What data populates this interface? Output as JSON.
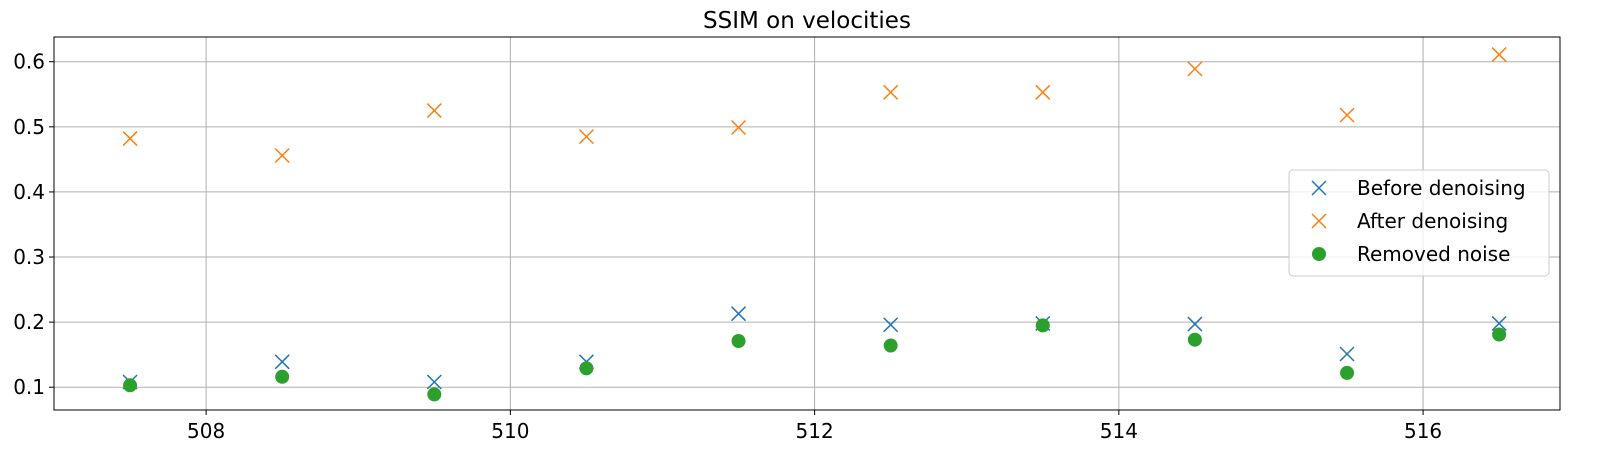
{
  "chart_data": {
    "type": "scatter",
    "title": "SSIM on velocities",
    "xlabel": "",
    "ylabel": "",
    "xlim": [
      507.0,
      516.9
    ],
    "ylim": [
      0.065,
      0.638
    ],
    "xticks": [
      508,
      510,
      512,
      514,
      516
    ],
    "yticks": [
      0.1,
      0.2,
      0.3,
      0.4,
      0.5,
      0.6
    ],
    "ytick_labels": [
      "0.1",
      "0.2",
      "0.3",
      "0.4",
      "0.5",
      "0.6"
    ],
    "grid": true,
    "legend_position": "center-right",
    "x": [
      507.5,
      508.5,
      509.5,
      510.5,
      511.5,
      512.5,
      513.5,
      514.5,
      515.5,
      516.5
    ],
    "series": [
      {
        "name": "Before denoising",
        "marker": "x",
        "color": "#1f77b4",
        "values": [
          0.108,
          0.139,
          0.108,
          0.139,
          0.213,
          0.196,
          0.198,
          0.197,
          0.151,
          0.198
        ]
      },
      {
        "name": "After denoising",
        "marker": "x",
        "color": "#ff7f0e",
        "values": [
          0.482,
          0.456,
          0.525,
          0.485,
          0.499,
          0.553,
          0.553,
          0.589,
          0.518,
          0.611
        ]
      },
      {
        "name": "Removed noise",
        "marker": "o",
        "color": "#2ca02c",
        "values": [
          0.103,
          0.116,
          0.089,
          0.129,
          0.171,
          0.164,
          0.195,
          0.173,
          0.122,
          0.181
        ]
      }
    ]
  }
}
